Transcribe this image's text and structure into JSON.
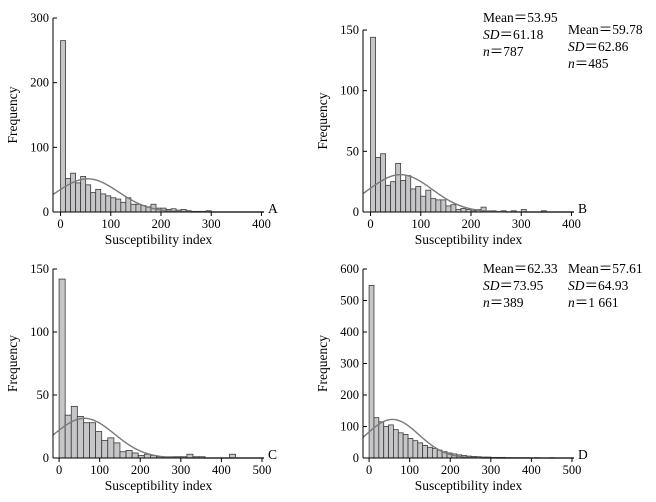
{
  "chart_data": [
    {
      "type": "histogram",
      "panel": "A",
      "xlabel": "Susceptibility index",
      "ylabel": "Frequency",
      "xlim": [
        -15,
        405
      ],
      "ylim": [
        0,
        300
      ],
      "xticks": [
        0,
        100,
        200,
        300,
        400
      ],
      "yticks": [
        0,
        100,
        200,
        300
      ],
      "stats": {
        "mean_label": "Mean",
        "mean": "53.95",
        "sd_label": "SD",
        "sd": "61.18",
        "n_label": "n",
        "n": "787"
      },
      "bin_width": 10,
      "bin_start": 0,
      "counts": [
        265,
        52,
        60,
        45,
        55,
        42,
        30,
        35,
        28,
        25,
        22,
        20,
        15,
        22,
        12,
        12,
        10,
        8,
        12,
        6,
        6,
        4,
        5,
        3,
        4,
        2,
        1,
        1,
        1,
        2,
        0,
        0,
        0,
        0,
        0,
        0,
        0,
        0,
        0,
        0
      ],
      "fit_scale": 7870
    },
    {
      "type": "histogram",
      "panel": "B",
      "xlabel": "Susceptibility index",
      "ylabel": "Frequency",
      "xlim": [
        -15,
        405
      ],
      "ylim": [
        0,
        150
      ],
      "xticks": [
        0,
        100,
        200,
        300,
        400
      ],
      "yticks": [
        0,
        50,
        100,
        150
      ],
      "stats": {
        "mean_label": "Mean",
        "mean": "59.78",
        "sd_label": "SD",
        "sd": "62.86",
        "n_label": "n",
        "n": "485"
      },
      "bin_width": 10,
      "bin_start": 0,
      "counts": [
        144,
        45,
        48,
        22,
        25,
        40,
        26,
        30,
        19,
        21,
        13,
        18,
        11,
        10,
        10,
        5,
        6,
        2,
        3,
        2,
        1,
        2,
        4,
        1,
        1,
        0,
        1,
        0,
        1,
        0,
        2,
        0,
        0,
        0,
        1,
        0,
        0,
        0,
        0,
        0
      ],
      "fit_scale": 4850
    },
    {
      "type": "histogram",
      "panel": "C",
      "xlabel": "Susceptibility index",
      "ylabel": "Frequency",
      "xlim": [
        -15,
        505
      ],
      "ylim": [
        0,
        150
      ],
      "xticks": [
        0,
        100,
        200,
        300,
        400,
        500
      ],
      "yticks": [
        0,
        50,
        100,
        150
      ],
      "stats": {
        "mean_label": "Mean",
        "mean": "62.33",
        "sd_label": "SD",
        "sd": "73.95",
        "n_label": "n",
        "n": "389"
      },
      "bin_width": 15,
      "bin_start": 0,
      "counts": [
        142,
        34,
        41,
        33,
        28,
        28,
        21,
        14,
        16,
        12,
        5,
        6,
        4,
        2,
        3,
        2,
        1,
        1,
        1,
        1,
        1,
        3,
        1,
        1,
        0,
        0,
        0,
        0,
        3,
        0,
        0,
        0,
        0
      ],
      "fit_scale": 5835
    },
    {
      "type": "histogram",
      "panel": "D",
      "xlabel": "Susceptibility index",
      "ylabel": "Frequency",
      "xlim": [
        -15,
        505
      ],
      "ylim": [
        0,
        600
      ],
      "xticks": [
        0,
        100,
        200,
        300,
        400,
        500
      ],
      "yticks": [
        0,
        100,
        200,
        300,
        400,
        500,
        600
      ],
      "stats": {
        "mean_label": "Mean",
        "mean": "57.61",
        "sd_label": "SD",
        "sd": "64.93",
        "n_label": "n",
        "n": "1 661"
      },
      "bin_width": 12,
      "bin_start": 0,
      "counts": [
        548,
        128,
        115,
        100,
        105,
        90,
        80,
        75,
        62,
        55,
        48,
        40,
        34,
        30,
        25,
        20,
        16,
        13,
        10,
        8,
        6,
        5,
        4,
        3,
        3,
        2,
        2,
        2,
        1,
        1,
        1,
        1,
        1,
        0,
        1,
        0,
        0,
        1,
        0,
        0,
        0,
        0
      ],
      "fit_scale": 19932
    }
  ]
}
